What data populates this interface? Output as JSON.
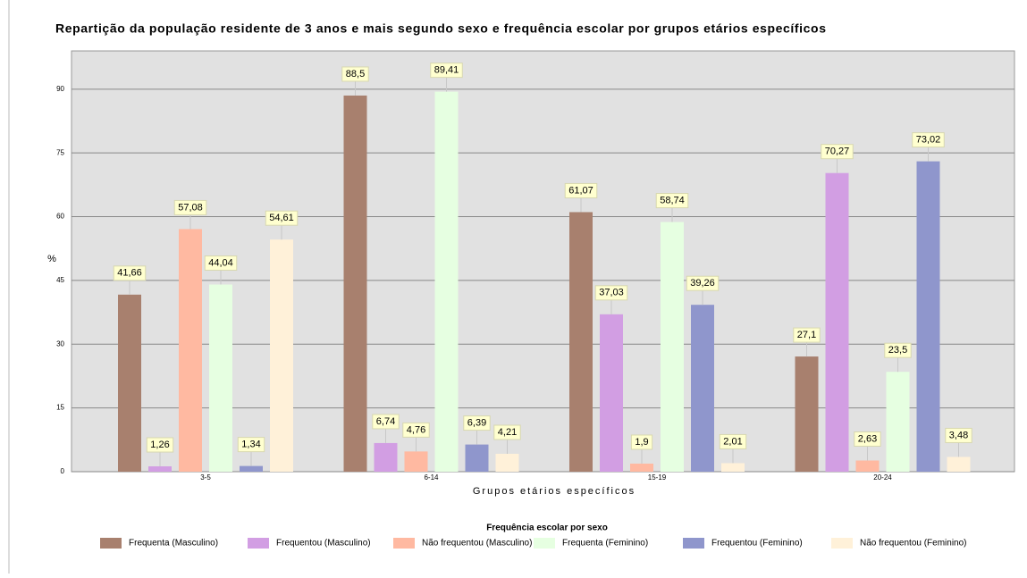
{
  "chart_data": {
    "type": "bar",
    "title": "Repartição da população residente de 3 anos e mais segundo sexo e frequência escolar por grupos etários específicos",
    "x_label": "Grupos etários específicos",
    "y_label": "%",
    "legend_title": "Frequência escolar por sexo",
    "categories": [
      "3-5",
      "6-14",
      "15-19",
      "20-24"
    ],
    "ylim": [
      0,
      99
    ],
    "yticks": [
      0,
      15,
      30,
      45,
      60,
      75,
      90
    ],
    "grid": true,
    "legend": "bottom",
    "series": [
      {
        "name": "Frequenta (Masculino)",
        "color": "#a8806e",
        "values": [
          41.66,
          88.5,
          61.07,
          27.1
        ],
        "value_labels": [
          "41,66",
          "88,5",
          "61,07",
          "27,1"
        ]
      },
      {
        "name": "Frequentou (Masculino)",
        "color": "#d29ee3",
        "values": [
          1.26,
          6.74,
          37.03,
          70.27
        ],
        "value_labels": [
          "1,26",
          "6,74",
          "37,03",
          "70,27"
        ]
      },
      {
        "name": "Não frequentou (Masculino)",
        "color": "#ffb9a1",
        "values": [
          57.08,
          4.76,
          1.9,
          2.63
        ],
        "value_labels": [
          "57,08",
          "4,76",
          "1,9",
          "2,63"
        ]
      },
      {
        "name": "Frequenta (Feminino)",
        "color": "#e6ffe1",
        "values": [
          44.04,
          89.41,
          58.74,
          23.5
        ],
        "value_labels": [
          "44,04",
          "89,41",
          "58,74",
          "23,5"
        ]
      },
      {
        "name": "Frequentou (Feminino)",
        "color": "#8f96cc",
        "values": [
          1.34,
          6.39,
          39.26,
          73.02
        ],
        "value_labels": [
          "1,34",
          "6,39",
          "39,26",
          "73,02"
        ]
      },
      {
        "name": "Não frequentou (Feminino)",
        "color": "#fff1d9",
        "values": [
          54.61,
          4.21,
          2.01,
          3.48
        ],
        "value_labels": [
          "54,61",
          "4,21",
          "2,01",
          "3,48"
        ]
      }
    ]
  }
}
